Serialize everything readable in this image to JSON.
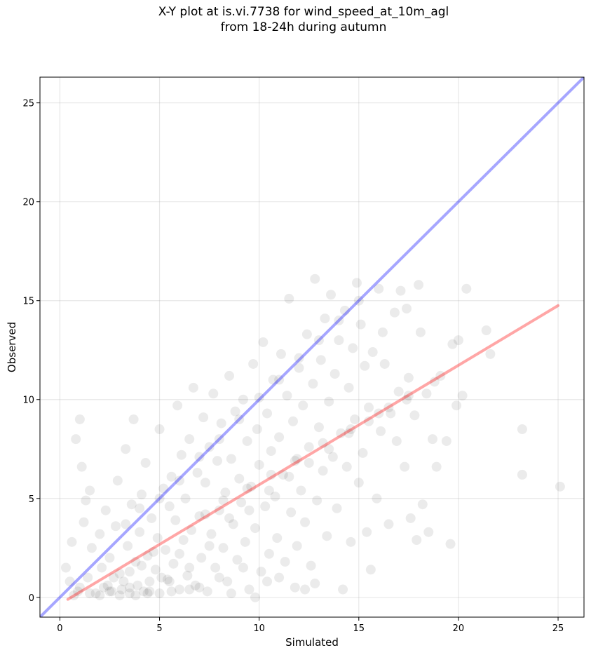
{
  "chart_data": {
    "type": "scatter",
    "title_line1": "X-Y plot at is.vi.7738 for wind_speed_at_10m_agl",
    "title_line2": "from 18-24h during autumn",
    "xlabel": "Simulated",
    "ylabel": "Observed",
    "xlim": [
      -1.0,
      26.3
    ],
    "ylim": [
      -1.0,
      26.3
    ],
    "xticks": [
      0,
      5,
      10,
      15,
      20,
      25
    ],
    "yticks": [
      0,
      5,
      10,
      15,
      20,
      25
    ],
    "xtick_labels": [
      "0",
      "5",
      "10",
      "15",
      "20",
      "25"
    ],
    "ytick_labels": [
      "0",
      "5",
      "10",
      "15",
      "20",
      "25"
    ],
    "grid": true,
    "point_color": "#000000",
    "point_opacity": 0.08,
    "reference_lines": [
      {
        "kind": "one-to-one",
        "color": "#0000ff",
        "x": [
          -1.0,
          26.3
        ],
        "y": [
          -1.0,
          26.3
        ]
      },
      {
        "kind": "regression",
        "color": "#ff0000",
        "x": [
          0.4,
          25.0
        ],
        "y": [
          -0.1,
          14.75
        ]
      }
    ],
    "points": [
      [
        0.3,
        1.5
      ],
      [
        0.5,
        0.8
      ],
      [
        0.6,
        2.8
      ],
      [
        0.8,
        8.0
      ],
      [
        1.0,
        9.0
      ],
      [
        1.1,
        6.6
      ],
      [
        0.9,
        0.3
      ],
      [
        1.2,
        3.8
      ],
      [
        1.3,
        4.9
      ],
      [
        1.5,
        5.4
      ],
      [
        1.4,
        1.0
      ],
      [
        1.6,
        2.5
      ],
      [
        1.8,
        0.2
      ],
      [
        2.0,
        3.2
      ],
      [
        2.1,
        1.5
      ],
      [
        2.2,
        0.5
      ],
      [
        2.3,
        4.4
      ],
      [
        2.5,
        2.0
      ],
      [
        2.6,
        0.3
      ],
      [
        2.8,
        3.6
      ],
      [
        2.9,
        5.9
      ],
      [
        3.0,
        1.2
      ],
      [
        3.1,
        0.4
      ],
      [
        3.3,
        7.5
      ],
      [
        3.4,
        2.6
      ],
      [
        3.5,
        0.2
      ],
      [
        3.6,
        4.7
      ],
      [
        3.7,
        9.0
      ],
      [
        3.8,
        1.8
      ],
      [
        3.9,
        0.6
      ],
      [
        4.0,
        3.3
      ],
      [
        4.1,
        5.2
      ],
      [
        4.2,
        0.3
      ],
      [
        4.3,
        6.8
      ],
      [
        4.4,
        2.1
      ],
      [
        4.5,
        0.8
      ],
      [
        4.6,
        4.0
      ],
      [
        4.8,
        1.4
      ],
      [
        4.9,
        3.0
      ],
      [
        5.0,
        8.5
      ],
      [
        5.0,
        0.2
      ],
      [
        5.2,
        5.5
      ],
      [
        5.3,
        2.4
      ],
      [
        5.4,
        0.9
      ],
      [
        5.5,
        4.6
      ],
      [
        5.6,
        6.1
      ],
      [
        5.7,
        1.7
      ],
      [
        5.8,
        3.9
      ],
      [
        5.9,
        9.7
      ],
      [
        6.0,
        0.4
      ],
      [
        6.1,
        7.2
      ],
      [
        6.2,
        2.9
      ],
      [
        6.3,
        5.0
      ],
      [
        6.4,
        1.1
      ],
      [
        6.5,
        8.0
      ],
      [
        6.6,
        3.4
      ],
      [
        6.7,
        10.6
      ],
      [
        6.8,
        0.6
      ],
      [
        6.9,
        6.3
      ],
      [
        7.0,
        4.1
      ],
      [
        7.1,
        2.0
      ],
      [
        7.2,
        9.1
      ],
      [
        7.3,
        5.8
      ],
      [
        7.4,
        0.3
      ],
      [
        7.5,
        7.6
      ],
      [
        7.6,
        3.2
      ],
      [
        7.7,
        10.3
      ],
      [
        7.8,
        1.5
      ],
      [
        7.9,
        6.9
      ],
      [
        8.0,
        4.4
      ],
      [
        8.1,
        8.8
      ],
      [
        8.2,
        2.5
      ],
      [
        8.3,
        5.3
      ],
      [
        8.4,
        0.8
      ],
      [
        8.5,
        11.2
      ],
      [
        8.6,
        7.0
      ],
      [
        8.7,
        3.7
      ],
      [
        8.8,
        9.4
      ],
      [
        8.9,
        1.9
      ],
      [
        9.0,
        6.0
      ],
      [
        9.1,
        4.8
      ],
      [
        9.2,
        10.0
      ],
      [
        9.3,
        2.8
      ],
      [
        9.4,
        7.9
      ],
      [
        9.5,
        0.4
      ],
      [
        9.6,
        5.6
      ],
      [
        9.7,
        11.8
      ],
      [
        9.8,
        3.5
      ],
      [
        9.9,
        8.5
      ],
      [
        10.0,
        6.7
      ],
      [
        10.1,
        1.3
      ],
      [
        10.2,
        12.9
      ],
      [
        10.3,
        4.6
      ],
      [
        10.4,
        9.3
      ],
      [
        10.5,
        2.2
      ],
      [
        10.6,
        7.4
      ],
      [
        10.7,
        11.0
      ],
      [
        10.8,
        5.1
      ],
      [
        10.9,
        3.0
      ],
      [
        11.0,
        8.1
      ],
      [
        11.1,
        12.3
      ],
      [
        11.2,
        6.2
      ],
      [
        11.3,
        1.8
      ],
      [
        11.4,
        10.2
      ],
      [
        11.5,
        15.1
      ],
      [
        11.6,
        4.3
      ],
      [
        11.7,
        8.9
      ],
      [
        11.8,
        6.9
      ],
      [
        11.9,
        2.6
      ],
      [
        12.0,
        11.6
      ],
      [
        12.1,
        5.4
      ],
      [
        12.2,
        9.7
      ],
      [
        12.3,
        3.8
      ],
      [
        12.4,
        13.3
      ],
      [
        12.5,
        7.6
      ],
      [
        12.6,
        1.6
      ],
      [
        12.7,
        10.8
      ],
      [
        12.8,
        16.1
      ],
      [
        12.9,
        4.9
      ],
      [
        13.0,
        8.6
      ],
      [
        13.1,
        12.0
      ],
      [
        13.2,
        6.4
      ],
      [
        13.3,
        14.1
      ],
      [
        13.4,
        3.1
      ],
      [
        13.5,
        9.9
      ],
      [
        13.6,
        15.3
      ],
      [
        13.7,
        7.1
      ],
      [
        13.8,
        11.3
      ],
      [
        13.9,
        4.5
      ],
      [
        14.0,
        13.0
      ],
      [
        14.1,
        8.3
      ],
      [
        14.2,
        0.4
      ],
      [
        14.3,
        14.5
      ],
      [
        14.4,
        6.6
      ],
      [
        14.5,
        10.6
      ],
      [
        14.6,
        2.8
      ],
      [
        14.7,
        12.6
      ],
      [
        14.8,
        9.0
      ],
      [
        14.9,
        15.9
      ],
      [
        15.0,
        5.8
      ],
      [
        15.1,
        13.8
      ],
      [
        15.2,
        7.3
      ],
      [
        15.3,
        11.7
      ],
      [
        15.4,
        3.3
      ],
      [
        15.5,
        9.6
      ],
      [
        15.6,
        1.4
      ],
      [
        15.7,
        12.4
      ],
      [
        15.9,
        5.0
      ],
      [
        16.0,
        15.6
      ],
      [
        16.1,
        8.4
      ],
      [
        16.2,
        13.4
      ],
      [
        16.3,
        11.8
      ],
      [
        16.5,
        3.7
      ],
      [
        16.6,
        9.3
      ],
      [
        16.8,
        14.4
      ],
      [
        16.9,
        7.9
      ],
      [
        17.0,
        10.4
      ],
      [
        17.1,
        15.5
      ],
      [
        17.3,
        6.6
      ],
      [
        17.4,
        14.6
      ],
      [
        17.5,
        11.1
      ],
      [
        17.6,
        4.0
      ],
      [
        17.8,
        9.2
      ],
      [
        17.9,
        2.9
      ],
      [
        18.0,
        15.8
      ],
      [
        18.1,
        13.4
      ],
      [
        18.2,
        4.7
      ],
      [
        18.4,
        10.3
      ],
      [
        18.5,
        3.3
      ],
      [
        18.7,
        8.0
      ],
      [
        18.9,
        6.6
      ],
      [
        19.1,
        11.2
      ],
      [
        19.4,
        7.9
      ],
      [
        19.6,
        2.7
      ],
      [
        19.7,
        12.8
      ],
      [
        19.9,
        9.7
      ],
      [
        20.0,
        13.0
      ],
      [
        20.4,
        15.6
      ],
      [
        20.2,
        10.2
      ],
      [
        21.4,
        13.5
      ],
      [
        21.6,
        12.3
      ],
      [
        23.2,
        8.5
      ],
      [
        23.2,
        6.2
      ],
      [
        25.1,
        5.6
      ],
      [
        0.7,
        0.1
      ],
      [
        1.0,
        0.5
      ],
      [
        1.5,
        0.2
      ],
      [
        2.0,
        0.1
      ],
      [
        2.4,
        0.6
      ],
      [
        2.7,
        1.0
      ],
      [
        3.0,
        0.1
      ],
      [
        3.2,
        0.8
      ],
      [
        3.5,
        1.3
      ],
      [
        3.8,
        0.1
      ],
      [
        4.1,
        1.6
      ],
      [
        4.4,
        0.2
      ],
      [
        4.7,
        2.3
      ],
      [
        5.1,
        1.0
      ],
      [
        5.6,
        0.3
      ],
      [
        6.0,
        2.2
      ],
      [
        6.5,
        1.5
      ],
      [
        7.0,
        0.5
      ],
      [
        7.5,
        2.6
      ],
      [
        8.0,
        1.0
      ],
      [
        8.6,
        0.2
      ],
      [
        9.2,
        1.5
      ],
      [
        9.8,
        0.0
      ],
      [
        10.4,
        0.8
      ],
      [
        11.0,
        1.0
      ],
      [
        11.8,
        0.5
      ],
      [
        12.3,
        0.4
      ],
      [
        12.8,
        0.7
      ],
      [
        3.3,
        3.7
      ],
      [
        4.0,
        4.5
      ],
      [
        5.0,
        5.0
      ],
      [
        6.0,
        5.9
      ],
      [
        7.0,
        7.1
      ],
      [
        8.0,
        8.0
      ],
      [
        9.0,
        9.0
      ],
      [
        10.0,
        10.1
      ],
      [
        11.0,
        11.0
      ],
      [
        12.0,
        12.1
      ],
      [
        13.0,
        13.0
      ],
      [
        14.0,
        14.0
      ],
      [
        15.0,
        15.0
      ],
      [
        2.5,
        0.3
      ],
      [
        3.5,
        0.5
      ],
      [
        4.5,
        0.3
      ],
      [
        5.5,
        0.8
      ],
      [
        6.5,
        0.4
      ],
      [
        8.5,
        4.0
      ],
      [
        9.5,
        4.4
      ],
      [
        10.5,
        5.4
      ],
      [
        11.5,
        6.1
      ],
      [
        12.5,
        6.8
      ],
      [
        13.5,
        7.5
      ],
      [
        14.5,
        8.3
      ],
      [
        15.5,
        8.9
      ],
      [
        16.5,
        9.6
      ],
      [
        17.5,
        10.2
      ],
      [
        7.3,
        4.2
      ],
      [
        8.2,
        4.9
      ],
      [
        9.4,
        5.5
      ],
      [
        10.6,
        6.2
      ],
      [
        11.9,
        7.0
      ],
      [
        13.2,
        7.8
      ],
      [
        14.6,
        8.5
      ],
      [
        16.0,
        9.3
      ],
      [
        17.4,
        10.0
      ],
      [
        18.8,
        10.9
      ]
    ]
  }
}
